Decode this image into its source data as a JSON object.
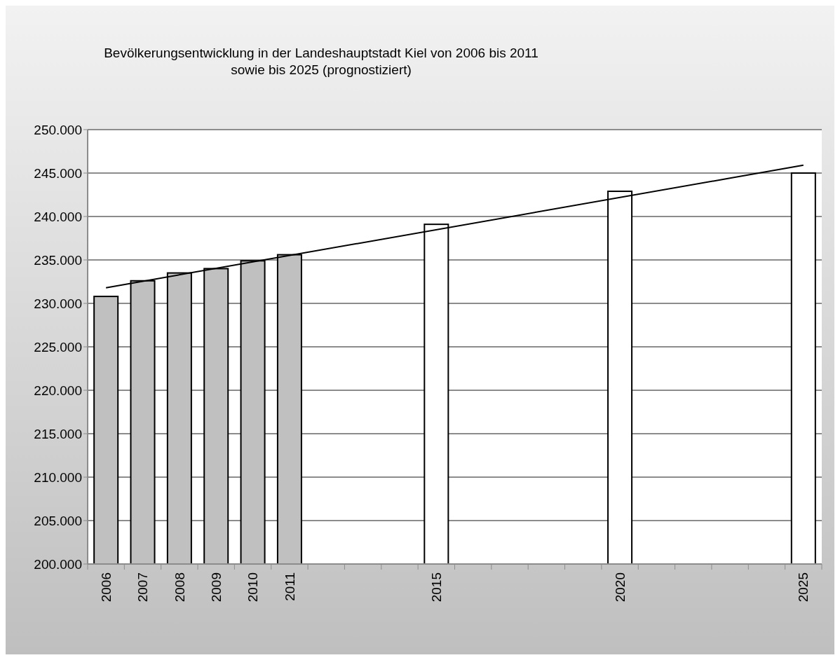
{
  "chart_data": {
    "type": "bar",
    "title": "Bevölkerungsentwicklung in der Landeshauptstadt Kiel von 2006 bis 2011\nsowie bis 2025 (prognostiziert)",
    "categories": [
      "2006",
      "2007",
      "2008",
      "2009",
      "2010",
      "2011",
      null,
      null,
      null,
      "2015",
      null,
      null,
      null,
      null,
      "2020",
      null,
      null,
      null,
      null,
      "2025"
    ],
    "series": [
      {
        "color": "#c0c0c0",
        "values": [
          230800,
          232600,
          233500,
          234000,
          234900,
          235600,
          null,
          null,
          null,
          null,
          null,
          null,
          null,
          null,
          null,
          null,
          null,
          null,
          null,
          null
        ]
      },
      {
        "color": "#ffffff",
        "values": [
          null,
          null,
          null,
          null,
          null,
          null,
          null,
          null,
          null,
          239100,
          null,
          null,
          null,
          null,
          242900,
          null,
          null,
          null,
          null,
          245000
        ]
      },
      {
        "type": "line",
        "color": "#000000",
        "values": [
          231800,
          null,
          null,
          null,
          null,
          null,
          null,
          null,
          null,
          null,
          null,
          null,
          null,
          null,
          null,
          null,
          null,
          null,
          null,
          245900
        ]
      }
    ],
    "ylim": [
      200000,
      250000
    ],
    "yticks": [
      {
        "value": 200000,
        "label": "200.000"
      },
      {
        "value": 205000,
        "label": "205.000"
      },
      {
        "value": 210000,
        "label": "210.000"
      },
      {
        "value": 215000,
        "label": "215.000"
      },
      {
        "value": 220000,
        "label": "220.000"
      },
      {
        "value": 225000,
        "label": "225.000"
      },
      {
        "value": 230000,
        "label": "230.000"
      },
      {
        "value": 235000,
        "label": "235.000"
      },
      {
        "value": 240000,
        "label": "240.000"
      },
      {
        "value": 245000,
        "label": "245.000"
      },
      {
        "value": 250000,
        "label": "250.000"
      }
    ],
    "grid": "y"
  }
}
